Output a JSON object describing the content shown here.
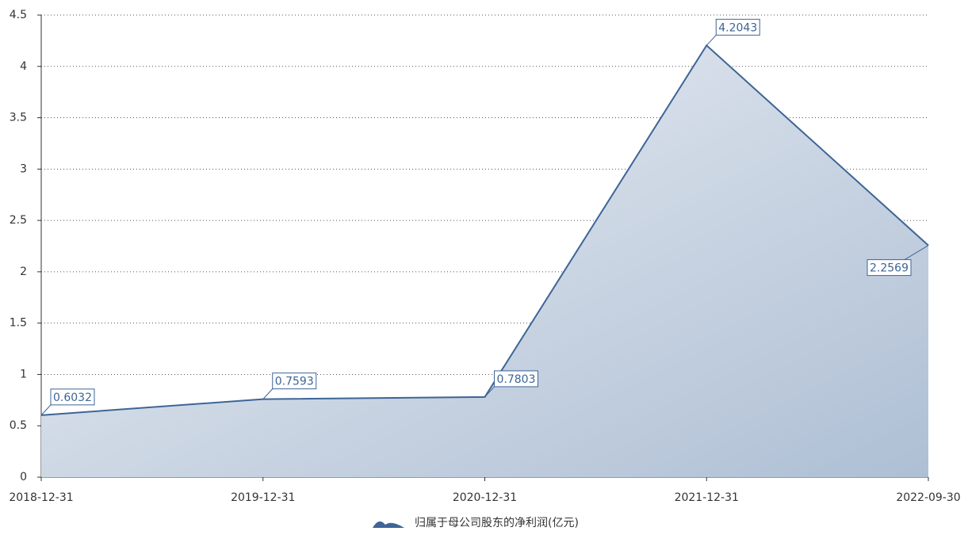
{
  "chart_data": {
    "type": "area",
    "categories": [
      "2018-12-31",
      "2019-12-31",
      "2020-12-31",
      "2021-12-31",
      "2022-09-30"
    ],
    "series": [
      {
        "name": "归属于母公司股东的净利润(亿元)",
        "color": "#3d6596",
        "values": [
          0.6032,
          0.7593,
          0.7803,
          4.2043,
          2.2569
        ]
      }
    ],
    "ylim": [
      0,
      4.5
    ],
    "yticks": [
      0,
      0.5,
      1,
      1.5,
      2,
      2.5,
      3,
      3.5,
      4,
      4.5
    ],
    "grid": true,
    "legend": "bottom"
  }
}
